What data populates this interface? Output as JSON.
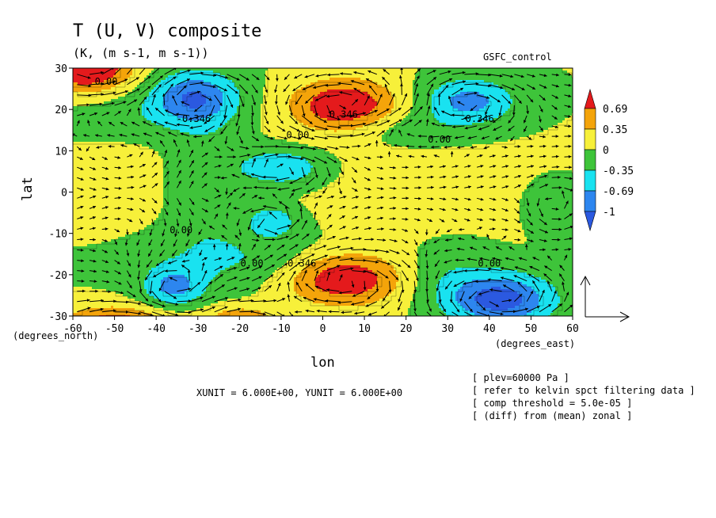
{
  "chart_data": {
    "type": "heatmap",
    "title": "T (U, V) composite",
    "subtitle": "(K, (m s-1, m s-1))",
    "run_label": "GSFC_control",
    "xlabel": "lon",
    "ylabel": "lat",
    "xunit_label": "(degrees_east)",
    "yunit_label": "(degrees_north)",
    "xlim": [
      -60,
      60
    ],
    "ylim": [
      -30,
      30
    ],
    "x_ticks": [
      -60,
      -50,
      -40,
      -30,
      -20,
      -10,
      0,
      10,
      20,
      30,
      40,
      50,
      60
    ],
    "y_ticks": [
      -30,
      -20,
      -10,
      0,
      10,
      20,
      30
    ],
    "x_tick_labels": [
      "-60",
      "-50",
      "-40",
      "-30",
      "-20",
      "-10",
      "0",
      "10",
      "20",
      "30",
      "40",
      "50",
      "60"
    ],
    "y_tick_labels": [
      "-30",
      "-20",
      "-10",
      "0",
      "10",
      "20",
      "30"
    ],
    "colorbar": {
      "labels": [
        "0.69",
        "0.35",
        "0",
        "-0.35",
        "-0.69",
        "-1"
      ],
      "colors": [
        "#e41a1c",
        "#f4a40a",
        "#f7f03a",
        "#3ec43a",
        "#19e2f0",
        "#2d86ef",
        "#2b59e0"
      ]
    },
    "contour_labels": [
      {
        "text": "0.00",
        "x": -52,
        "y": 26
      },
      {
        "text": "-0.346",
        "x": -31,
        "y": 17
      },
      {
        "text": "0.346",
        "x": 5,
        "y": 18
      },
      {
        "text": "0.00",
        "x": -6,
        "y": 13
      },
      {
        "text": "-0.346",
        "x": 37,
        "y": 17
      },
      {
        "text": "0.00",
        "x": 28,
        "y": 12
      },
      {
        "text": "0.00",
        "x": -34,
        "y": -10
      },
      {
        "text": "0.00",
        "x": -17,
        "y": -18
      },
      {
        "text": "0.346",
        "x": -5,
        "y": -18
      },
      {
        "text": "0.00",
        "x": 40,
        "y": -18
      }
    ],
    "anomalies": [
      {
        "x": -57,
        "y": 30,
        "amp": 1.1,
        "sx": 8,
        "sy": 4
      },
      {
        "x": -31,
        "y": 23,
        "amp": -0.95,
        "sx": 7.5,
        "sy": 4.5
      },
      {
        "x": 5,
        "y": 21,
        "amp": 1.0,
        "sx": 9,
        "sy": 4.5
      },
      {
        "x": 35,
        "y": 22,
        "amp": -0.85,
        "sx": 8,
        "sy": 4
      },
      {
        "x": -10,
        "y": 6,
        "amp": -0.7,
        "sx": 7,
        "sy": 3
      },
      {
        "x": -12,
        "y": -7,
        "amp": -0.6,
        "sx": 4,
        "sy": 2.5
      },
      {
        "x": 5,
        "y": -21,
        "amp": 1.0,
        "sx": 10,
        "sy": 4.5
      },
      {
        "x": -36,
        "y": -23,
        "amp": -0.75,
        "sx": 5,
        "sy": 3.5
      },
      {
        "x": 43,
        "y": -26,
        "amp": -1.15,
        "sx": 9,
        "sy": 4.5
      },
      {
        "x": -50,
        "y": -31,
        "amp": 0.8,
        "sx": 9,
        "sy": 2.5
      },
      {
        "x": -20,
        "y": -30,
        "amp": 0.5,
        "sx": 7,
        "sy": 2
      },
      {
        "x": 20,
        "y": 0,
        "amp": 0.12,
        "sx": 18,
        "sy": 16
      },
      {
        "x": -48,
        "y": 3,
        "amp": 0.1,
        "sx": 10,
        "sy": 14
      },
      {
        "x": -28,
        "y": 3,
        "amp": -0.25,
        "sx": 6,
        "sy": 14
      },
      {
        "x": 55,
        "y": -4,
        "amp": -0.25,
        "sx": 4,
        "sy": 4
      },
      {
        "x": 20,
        "y": 15,
        "amp": -0.3,
        "sx": 10,
        "sy": 3
      },
      {
        "x": -45,
        "y": 18,
        "amp": -0.25,
        "sx": 12,
        "sy": 4
      },
      {
        "x": -20,
        "y": -16,
        "amp": -0.35,
        "sx": 18,
        "sy": 5
      },
      {
        "x": 30,
        "y": -20,
        "amp": -0.3,
        "sx": 8,
        "sy": 6
      }
    ],
    "reference_vector_label": "XUNIT = 6.000E+00, YUNIT = 6.000E+00",
    "notes": [
      "[ plev=60000 Pa ]",
      "[ refer to kelvin spct filtering data ]",
      "[ comp threshold = 5.0e-05 ]",
      "[ (diff) from (mean) zonal ]"
    ]
  }
}
